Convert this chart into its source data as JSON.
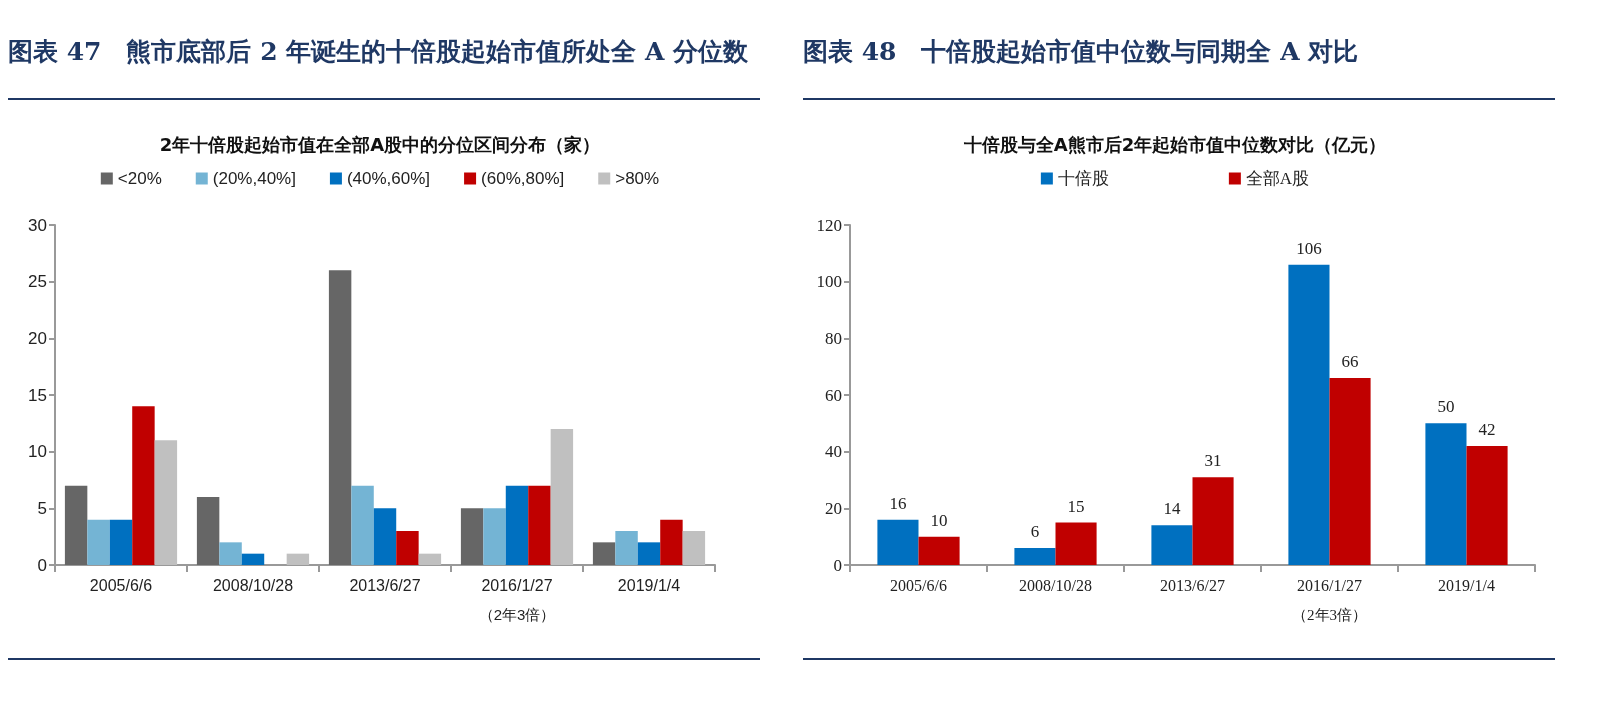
{
  "chart_data": [
    {
      "type": "bar",
      "title": "图表 47　熊市底部后 2 年诞生的十倍股起始市值所处全 A 分位数",
      "subtitle": "2年十倍股起始市值在全部A股中的分位区间分布（家）",
      "categories": [
        "2005/6/6",
        "2008/10/28",
        "2013/6/27",
        "2016/1/27",
        "2019/1/4"
      ],
      "series": [
        {
          "name": "<20%",
          "color": "#666666",
          "values": [
            7,
            6,
            26,
            5,
            2
          ]
        },
        {
          "name": "(20%,40%]",
          "color": "#74b4d4",
          "values": [
            4,
            2,
            7,
            5,
            3
          ]
        },
        {
          "name": "(40%,60%]",
          "color": "#0070c0",
          "values": [
            4,
            1,
            5,
            7,
            2
          ]
        },
        {
          "name": "(60%,80%]",
          "color": "#c00000",
          "values": [
            14,
            0,
            3,
            7,
            4
          ]
        },
        {
          "name": ">80%",
          "color": "#c0c0c0",
          "values": [
            11,
            1,
            1,
            12,
            3
          ]
        }
      ],
      "ylim": [
        0,
        30
      ],
      "yticks": [
        0,
        5,
        10,
        15,
        20,
        25,
        30
      ],
      "grid": false,
      "legend": "top",
      "annotations": [
        "（2年3倍）"
      ]
    },
    {
      "type": "bar",
      "title": "图表 48　十倍股起始市值中位数与同期全 A 对比",
      "subtitle": "十倍股与全A熊市后2年起始市值中位数对比（亿元）",
      "categories": [
        "2005/6/6",
        "2008/10/28",
        "2013/6/27",
        "2016/1/27",
        "2019/1/4"
      ],
      "series": [
        {
          "name": "十倍股",
          "color": "#0070c0",
          "values": [
            16,
            6,
            14,
            106,
            50
          ]
        },
        {
          "name": "全部A股",
          "color": "#c00000",
          "values": [
            10,
            15,
            31,
            66,
            42
          ]
        }
      ],
      "ylim": [
        0,
        120
      ],
      "yticks": [
        0,
        20,
        40,
        60,
        80,
        100,
        120
      ],
      "grid": false,
      "legend": "top",
      "data_labels": true,
      "annotations": [
        "（2年3倍）"
      ]
    }
  ]
}
